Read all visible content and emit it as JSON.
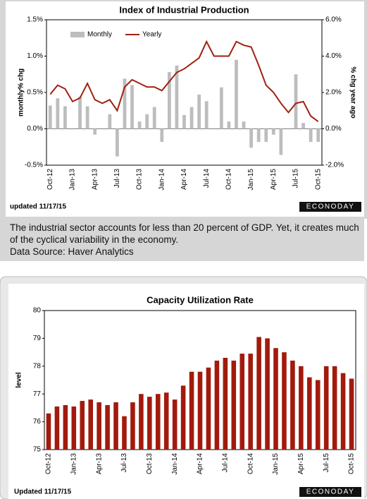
{
  "chart_data": [
    {
      "type": "bar-line",
      "title": "Index of Industrial Production",
      "ylabel": "monthly% chg",
      "y2label": "% chg year ago",
      "categories": [
        "Oct-12",
        null,
        null,
        "Jan-13",
        null,
        null,
        "Apr-13",
        null,
        null,
        "Jul-13",
        null,
        null,
        "Oct-13",
        null,
        null,
        "Jan-14",
        null,
        null,
        "Apr-14",
        null,
        null,
        "Jul-14",
        null,
        null,
        "Oct-14",
        null,
        null,
        "Jan-15",
        null,
        null,
        "Apr-15",
        null,
        null,
        "Jul-15",
        null,
        null,
        "Oct-15"
      ],
      "series": [
        {
          "name": "Monthly",
          "color": "#bdbdbd",
          "type": "bar",
          "values": [
            0.32,
            0.42,
            0.31,
            0,
            0.44,
            0.31,
            -0.08,
            0,
            0.2,
            -0.38,
            0.69,
            0.6,
            0.1,
            0.2,
            0.3,
            -0.18,
            0.78,
            0.87,
            0.19,
            0.3,
            0.47,
            0.38,
            0,
            0.57,
            0.1,
            0.95,
            0.1,
            -0.26,
            -0.18,
            -0.18,
            -0.08,
            -0.36,
            0,
            0.75,
            0.08,
            -0.18,
            -0.18
          ]
        },
        {
          "name": "Yearly",
          "color": "#a0210f",
          "type": "line",
          "axis": "y2",
          "values": [
            1.9,
            2.4,
            2.2,
            1.5,
            1.7,
            2.5,
            1.6,
            1.4,
            1.6,
            1.0,
            2.3,
            2.7,
            2.5,
            2.3,
            2.3,
            2.1,
            2.6,
            3.1,
            3.3,
            3.6,
            3.9,
            4.8,
            4.0,
            4.0,
            4.0,
            4.8,
            4.6,
            4.5,
            3.5,
            2.4,
            2.0,
            1.4,
            0.9,
            1.4,
            1.5,
            0.7,
            0.4
          ]
        }
      ],
      "ylim": [
        -0.5,
        1.5
      ],
      "yticks": [
        {
          "value": -0.5,
          "label": "-0.5%"
        },
        {
          "value": 0,
          "label": "0.0%"
        },
        {
          "value": 0.5,
          "label": "0.5%"
        },
        {
          "value": 1.0,
          "label": "1.0%"
        },
        {
          "value": 1.5,
          "label": "1.5%"
        }
      ],
      "y2lim": [
        -2,
        6
      ],
      "y2ticks": [
        {
          "value": -2,
          "label": "-2.0%"
        },
        {
          "value": 0,
          "label": "0.0%"
        },
        {
          "value": 2,
          "label": "2.0%"
        },
        {
          "value": 4,
          "label": "4.0%"
        },
        {
          "value": 6,
          "label": "6.0%"
        }
      ],
      "grid": false,
      "legend": "top-left",
      "updated": "updated 11/17/15",
      "logo": "ECONODAY"
    },
    {
      "type": "bar",
      "title": "Capacity Utilization Rate",
      "ylabel": "level",
      "categories": [
        "Oct-12",
        null,
        null,
        "Jan-13",
        null,
        null,
        "Apr-13",
        null,
        null,
        "Jul-13",
        null,
        null,
        "Oct-13",
        null,
        null,
        "Jan-14",
        null,
        null,
        "Apr-14",
        null,
        null,
        "Jul-14",
        null,
        null,
        "Oct-14",
        null,
        null,
        "Jan-15",
        null,
        null,
        "Apr-15",
        null,
        null,
        "Jul-15",
        null,
        null,
        "Oct-15"
      ],
      "values": [
        76.3,
        76.55,
        76.6,
        76.55,
        76.75,
        76.8,
        76.7,
        76.6,
        76.7,
        76.2,
        76.7,
        77.0,
        76.9,
        77.0,
        77.05,
        76.8,
        77.3,
        77.8,
        77.8,
        77.95,
        78.2,
        78.3,
        78.2,
        78.45,
        78.45,
        79.05,
        79.0,
        78.65,
        78.5,
        78.2,
        78.0,
        77.6,
        77.5,
        78.0,
        78.0,
        77.75,
        77.55
      ],
      "color": "#a21a0c",
      "ylim": [
        75,
        80
      ],
      "yticks": [
        75,
        76,
        77,
        78,
        79,
        80
      ],
      "grid": false,
      "updated": "Updated 11/17/15",
      "logo": "ECONODAY"
    }
  ],
  "caption": {
    "text": "The industrial sector accounts for less than 20 percent of GDP. Yet, it creates much of the cyclical variability in the economy.",
    "source": "Data Source: Haver Analytics"
  }
}
